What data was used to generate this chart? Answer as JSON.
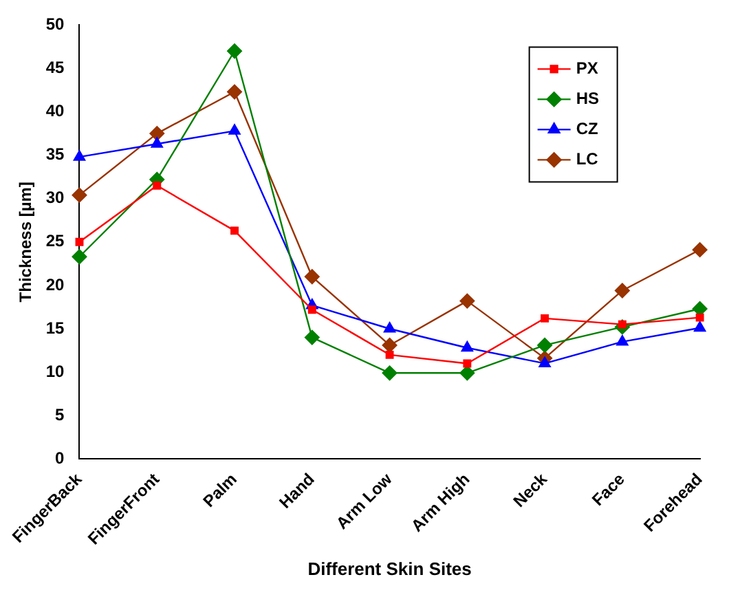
{
  "chart_data": {
    "type": "line",
    "xlabel": "Different Skin Sites",
    "ylabel": "Thickness [µm]",
    "categories": [
      "FingerBack",
      "FingerFront",
      "Palm",
      "Hand",
      "Arm Low",
      "Arm High",
      "Neck",
      "Face",
      "Forehead"
    ],
    "series": [
      {
        "name": "PX",
        "color": "#ff0000",
        "marker": "square",
        "values": [
          25,
          31.5,
          26.3,
          17.2,
          12,
          11,
          16.2,
          15.5,
          16.3
        ]
      },
      {
        "name": "HS",
        "color": "#008000",
        "marker": "diamond",
        "values": [
          23.3,
          32.2,
          47,
          14,
          9.9,
          9.9,
          13.1,
          15.2,
          17.3
        ]
      },
      {
        "name": "CZ",
        "color": "#0000ff",
        "marker": "triangle",
        "values": [
          34.8,
          36.3,
          37.8,
          17.7,
          15,
          12.8,
          11,
          13.5,
          15.1
        ]
      },
      {
        "name": "LC",
        "color": "#993300",
        "marker": "diamond",
        "values": [
          30.4,
          37.5,
          42.3,
          21,
          13.1,
          18.2,
          11.6,
          19.4,
          24.1
        ]
      }
    ],
    "ylim": [
      0,
      50
    ],
    "yticks": [
      0,
      5,
      10,
      15,
      20,
      25,
      30,
      35,
      40,
      45,
      50
    ],
    "grid": false,
    "legend": "top right"
  }
}
